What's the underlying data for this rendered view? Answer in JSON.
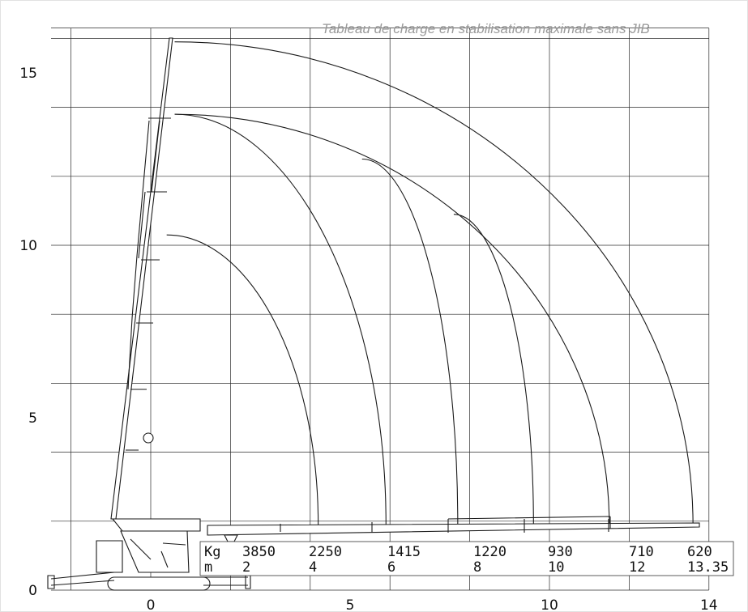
{
  "chart_data": {
    "type": "load-chart",
    "title": "Tableau de charge en stabilisation maximale sans JIB",
    "x_ticks": [
      "0",
      "5",
      "10",
      "14"
    ],
    "y_ticks": [
      "0",
      "5",
      "10",
      "15"
    ],
    "xlim": [
      -2.5,
      14
    ],
    "ylim": [
      0,
      16.3
    ],
    "grid": true,
    "table": {
      "load_label": "Kg",
      "radius_label": "m",
      "loads": [
        "3850",
        "2250",
        "1415",
        "1220",
        "930",
        "710",
        "620"
      ],
      "radii": [
        "2",
        "4",
        "6",
        "8",
        "10",
        "12",
        "13.35"
      ]
    },
    "curves": [
      {
        "load": "3850",
        "radius_at_ground": 4.2,
        "start": [
          0.4,
          10.3
        ]
      },
      {
        "load": "2250",
        "radius_at_ground": 5.9,
        "start": [
          0.6,
          13.8
        ]
      },
      {
        "load": "1415",
        "radius_at_ground": 7.7,
        "start": [
          5.3,
          12.5
        ]
      },
      {
        "load": "1220",
        "radius_at_ground": 9.6,
        "start": [
          7.6,
          10.9
        ]
      },
      {
        "load": "930",
        "radius_at_ground": 11.5,
        "start": [
          0.6,
          13.8
        ]
      },
      {
        "load": "710",
        "radius_at_ground": 13.6,
        "start": [
          0.6,
          15.9
        ]
      }
    ]
  }
}
